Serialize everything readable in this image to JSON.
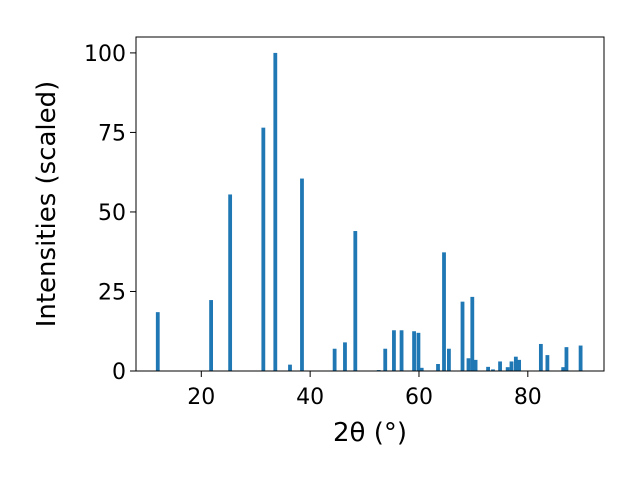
{
  "chart_data": {
    "type": "bar",
    "xlabel": "2θ (°)",
    "ylabel": "Intensities (scaled)",
    "xlim": [
      8,
      94
    ],
    "ylim": [
      0,
      105
    ],
    "xticks": [
      20,
      40,
      60,
      80
    ],
    "yticks": [
      0,
      25,
      50,
      75,
      100
    ],
    "grid": false,
    "bar_color": "#1f77b4",
    "x": [
      12.0,
      21.8,
      25.3,
      31.4,
      33.6,
      36.3,
      38.5,
      44.5,
      46.4,
      48.3,
      52.6,
      53.8,
      55.4,
      56.8,
      59.1,
      59.9,
      60.5,
      63.5,
      64.6,
      65.5,
      68.0,
      69.1,
      69.8,
      70.4,
      72.7,
      73.6,
      74.9,
      76.3,
      77.0,
      77.8,
      78.4,
      82.4,
      83.6,
      86.5,
      87.1,
      89.7
    ],
    "values": [
      18.5,
      22.3,
      55.5,
      76.5,
      100.0,
      2.0,
      60.5,
      7.0,
      9.0,
      44.0,
      0.3,
      7.0,
      12.8,
      12.8,
      12.5,
      12.0,
      1.0,
      2.2,
      37.3,
      7.0,
      21.8,
      4.0,
      23.3,
      3.5,
      1.3,
      0.5,
      3.0,
      1.2,
      3.0,
      4.5,
      3.5,
      8.5,
      5.0,
      1.2,
      7.5,
      8.0
    ]
  }
}
